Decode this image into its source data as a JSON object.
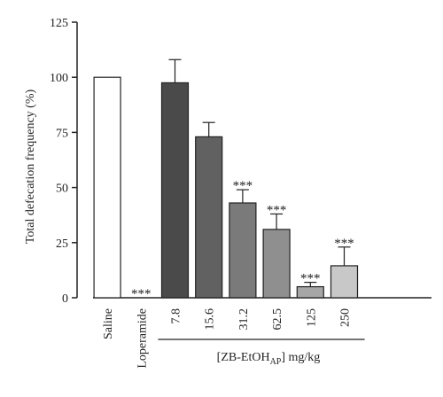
{
  "chart_data": {
    "type": "bar",
    "categories": [
      "Saline",
      "Loperamide",
      "7.8",
      "15.6",
      "31.2",
      "62.5",
      "125",
      "250"
    ],
    "values": [
      100,
      0,
      97.5,
      73,
      43,
      31,
      5,
      14.5
    ],
    "errors": [
      0,
      0,
      10.5,
      6.5,
      6,
      7,
      2,
      8.5
    ],
    "significance": [
      "",
      "***",
      "",
      "",
      "***",
      "***",
      "***",
      "***"
    ],
    "bar_colors": [
      "#ffffff",
      "#ffffff",
      "#4a4a4a",
      "#616161",
      "#7a7a7a",
      "#8f8f8f",
      "#a6a6a6",
      "#c8c8c8"
    ],
    "ylabel": "Total defecation frequency (%)",
    "yticks": [
      "0",
      "25",
      "50",
      "75",
      "100",
      "125"
    ],
    "ylim": [
      0,
      125
    ],
    "group_label": {
      "prefix": "[ZB-EtOH",
      "subscript": "AP",
      "suffix": "] mg/kg",
      "from_category": 2,
      "to_category": 7
    },
    "grid": false,
    "legend": "none"
  }
}
